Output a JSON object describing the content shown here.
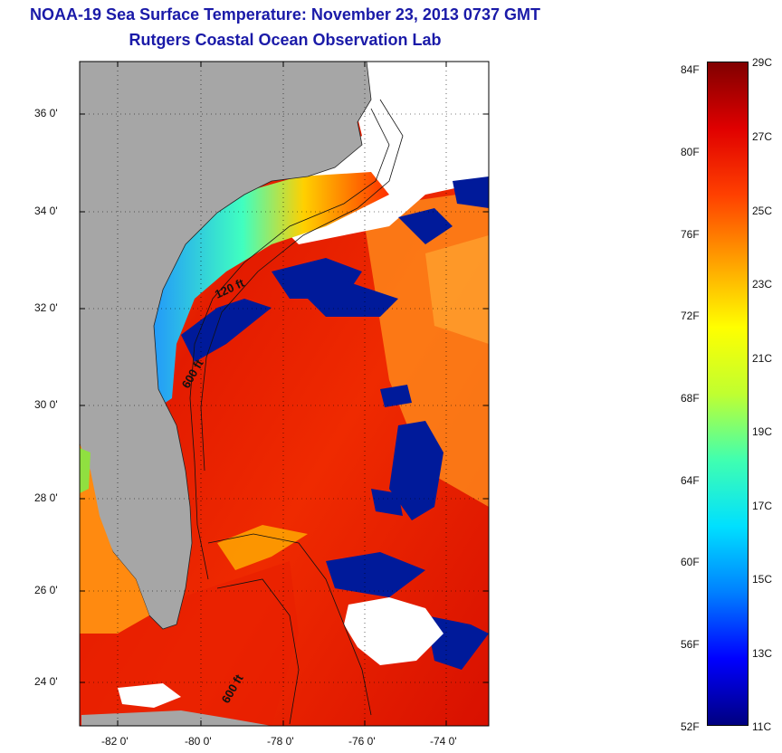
{
  "title": {
    "line1": "NOAA-19 Sea Surface Temperature:  November 23, 2013 0737 GMT",
    "line2": "Rutgers Coastal Ocean Observation Lab"
  },
  "axes": {
    "lat_ticks": [
      "36 0'",
      "34 0'",
      "32 0'",
      "30 0'",
      "28 0'",
      "26 0'",
      "24 0'"
    ],
    "lon_ticks": [
      "-82 0'",
      "-80 0'",
      "-78 0'",
      "-76 0'",
      "-74 0'"
    ]
  },
  "isobath_labels": [
    "120 ft",
    "600 ft",
    "600 ft"
  ],
  "colorbar": {
    "fahrenheit": [
      "84F",
      "80F",
      "76F",
      "72F",
      "68F",
      "64F",
      "60F",
      "56F",
      "52F"
    ],
    "celsius": [
      "29C",
      "27C",
      "25C",
      "23C",
      "21C",
      "19C",
      "17C",
      "15C",
      "13C",
      "11C"
    ],
    "range_c": [
      11,
      29
    ],
    "stops": [
      "#000080",
      "#0000ff",
      "#0080ff",
      "#00e0ff",
      "#40ffb0",
      "#c0ff30",
      "#ffff00",
      "#ffa000",
      "#ff4000",
      "#e00000",
      "#800000"
    ]
  },
  "colors": {
    "land": "#a6a6a6",
    "cloud": "#ffffff",
    "title": "#1a1aa8"
  }
}
